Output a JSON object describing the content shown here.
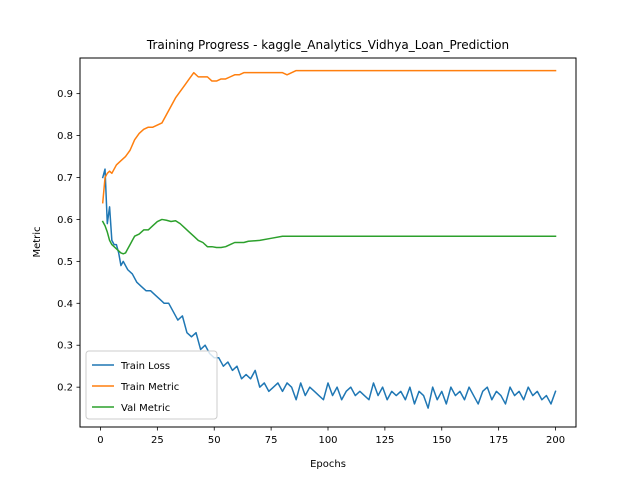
{
  "chart_data": {
    "type": "line",
    "title": "Training Progress - kaggle_Analytics_Vidhya_Loan_Prediction",
    "xlabel": "Epochs",
    "ylabel": "Metric",
    "xlim": [
      -9,
      209
    ],
    "ylim": [
      0.105,
      0.985
    ],
    "xticks": [
      0,
      25,
      50,
      75,
      100,
      125,
      150,
      175,
      200
    ],
    "yticks": [
      0.2,
      0.3,
      0.4,
      0.5,
      0.6,
      0.7,
      0.8,
      0.9
    ],
    "ytick_labels": [
      "0.2",
      "0.3",
      "0.4",
      "0.5",
      "0.6",
      "0.7",
      "0.8",
      "0.9"
    ],
    "grid": false,
    "legend_position": "lower-left",
    "series": [
      {
        "name": "Train Loss",
        "color": "#1f77b4",
        "x": [
          1,
          2,
          3,
          4,
          5,
          6,
          7,
          8,
          9,
          10,
          12,
          14,
          16,
          18,
          20,
          22,
          24,
          26,
          28,
          30,
          32,
          34,
          36,
          38,
          40,
          42,
          44,
          46,
          48,
          50,
          52,
          54,
          56,
          58,
          60,
          62,
          64,
          66,
          68,
          70,
          72,
          74,
          76,
          78,
          80,
          82,
          84,
          86,
          88,
          90,
          92,
          94,
          96,
          98,
          100,
          102,
          104,
          106,
          108,
          110,
          112,
          114,
          116,
          118,
          120,
          122,
          124,
          126,
          128,
          130,
          132,
          134,
          136,
          138,
          140,
          142,
          144,
          146,
          148,
          150,
          152,
          154,
          156,
          158,
          160,
          162,
          164,
          166,
          168,
          170,
          172,
          174,
          176,
          178,
          180,
          182,
          184,
          186,
          188,
          190,
          192,
          194,
          196,
          198,
          200
        ],
        "values": [
          0.7,
          0.72,
          0.59,
          0.63,
          0.55,
          0.54,
          0.54,
          0.52,
          0.49,
          0.5,
          0.48,
          0.47,
          0.45,
          0.44,
          0.43,
          0.43,
          0.42,
          0.41,
          0.4,
          0.4,
          0.38,
          0.36,
          0.37,
          0.33,
          0.32,
          0.33,
          0.29,
          0.3,
          0.28,
          0.27,
          0.27,
          0.25,
          0.26,
          0.24,
          0.25,
          0.22,
          0.23,
          0.22,
          0.24,
          0.2,
          0.21,
          0.19,
          0.2,
          0.21,
          0.19,
          0.21,
          0.2,
          0.17,
          0.21,
          0.18,
          0.2,
          0.19,
          0.18,
          0.17,
          0.21,
          0.18,
          0.2,
          0.17,
          0.19,
          0.2,
          0.18,
          0.19,
          0.18,
          0.17,
          0.21,
          0.18,
          0.2,
          0.17,
          0.19,
          0.18,
          0.19,
          0.17,
          0.2,
          0.16,
          0.19,
          0.18,
          0.15,
          0.2,
          0.17,
          0.19,
          0.16,
          0.2,
          0.18,
          0.19,
          0.17,
          0.2,
          0.18,
          0.16,
          0.19,
          0.2,
          0.17,
          0.19,
          0.18,
          0.16,
          0.2,
          0.18,
          0.19,
          0.17,
          0.2,
          0.18,
          0.19,
          0.17,
          0.18,
          0.16,
          0.19
        ]
      },
      {
        "name": "Train Metric",
        "color": "#ff7f0e",
        "x": [
          1,
          2,
          3,
          4,
          5,
          7,
          9,
          11,
          13,
          15,
          17,
          19,
          21,
          23,
          25,
          27,
          29,
          31,
          33,
          35,
          37,
          39,
          41,
          43,
          45,
          47,
          49,
          51,
          53,
          55,
          57,
          59,
          61,
          63,
          65,
          70,
          75,
          80,
          82,
          84,
          86,
          88,
          90,
          100,
          120,
          150,
          180,
          200
        ],
        "values": [
          0.64,
          0.7,
          0.71,
          0.715,
          0.71,
          0.73,
          0.74,
          0.75,
          0.765,
          0.79,
          0.805,
          0.815,
          0.82,
          0.82,
          0.825,
          0.83,
          0.85,
          0.87,
          0.89,
          0.905,
          0.92,
          0.935,
          0.95,
          0.94,
          0.94,
          0.94,
          0.93,
          0.93,
          0.935,
          0.935,
          0.94,
          0.945,
          0.945,
          0.95,
          0.95,
          0.95,
          0.95,
          0.95,
          0.945,
          0.95,
          0.955,
          0.955,
          0.955,
          0.955,
          0.955,
          0.955,
          0.955,
          0.955
        ]
      },
      {
        "name": "Val Metric",
        "color": "#2ca02c",
        "x": [
          1,
          2,
          3,
          4,
          5,
          6,
          7,
          8,
          9,
          10,
          11,
          12,
          13,
          14,
          15,
          17,
          19,
          21,
          23,
          25,
          27,
          29,
          31,
          33,
          35,
          37,
          39,
          41,
          43,
          45,
          47,
          49,
          51,
          53,
          55,
          57,
          59,
          61,
          63,
          65,
          70,
          75,
          80,
          85,
          90,
          100,
          120,
          140,
          160,
          180,
          200
        ],
        "values": [
          0.595,
          0.585,
          0.57,
          0.55,
          0.54,
          0.535,
          0.53,
          0.525,
          0.52,
          0.518,
          0.52,
          0.53,
          0.54,
          0.55,
          0.56,
          0.565,
          0.575,
          0.575,
          0.585,
          0.595,
          0.6,
          0.598,
          0.595,
          0.597,
          0.59,
          0.58,
          0.57,
          0.56,
          0.55,
          0.545,
          0.535,
          0.535,
          0.533,
          0.533,
          0.535,
          0.54,
          0.545,
          0.545,
          0.545,
          0.548,
          0.55,
          0.555,
          0.56,
          0.56,
          0.56,
          0.56,
          0.56,
          0.56,
          0.56,
          0.56,
          0.56
        ]
      }
    ]
  }
}
